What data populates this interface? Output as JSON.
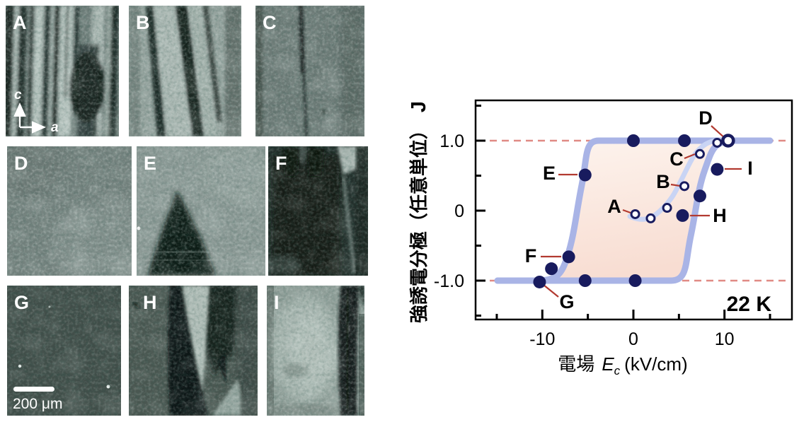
{
  "figure": {
    "panels": [
      {
        "label": "A"
      },
      {
        "label": "B"
      },
      {
        "label": "C"
      },
      {
        "label": "D"
      },
      {
        "label": "E"
      },
      {
        "label": "F"
      },
      {
        "label": "G"
      },
      {
        "label": "H"
      },
      {
        "label": "I"
      }
    ],
    "crystal_axes": {
      "vertical_axis": "c",
      "horizontal_axis": "a"
    },
    "scale_bar": {
      "label": "200 μm"
    }
  },
  "plot": {
    "panel_label": "J",
    "ylabel": "強誘電分極（任意単位）",
    "xlabel": {
      "prefix": "電場",
      "symbol": "E",
      "subscript": "c",
      "unit": "(kV/cm)"
    },
    "temperature_label": "22 K"
  },
  "chart_data": {
    "type": "scatter",
    "title": "",
    "xlabel": "電場 Ec (kV/cm)",
    "ylabel": "強誘電分極（任意単位）",
    "xlim": [
      -17.4,
      17.4
    ],
    "ylim": [
      -1.56,
      1.58
    ],
    "grid": false,
    "xticks": [
      {
        "value": -10,
        "label": "-10"
      },
      {
        "value": 0,
        "label": "0"
      },
      {
        "value": 10,
        "label": "10"
      }
    ],
    "minor_xticks": [
      -15,
      -5,
      5,
      15
    ],
    "yticks": [
      {
        "value": 1.0,
        "label": "1.0"
      },
      {
        "value": 0,
        "label": "0"
      },
      {
        "value": -1.0,
        "label": "-1.0"
      }
    ],
    "minor_yticks": [
      1.5,
      0.5,
      -0.5,
      -1.5
    ],
    "reference_lines_y": [
      1.0,
      -1.0
    ],
    "annotation": "22 K",
    "series": [
      {
        "name": "initial-polarization-states",
        "marker": "open-circle",
        "points": [
          {
            "label": "A",
            "x": 0.2,
            "y": -0.05
          },
          {
            "x": 1.9,
            "y": -0.11
          },
          {
            "x": 3.7,
            "y": 0.04
          },
          {
            "label": "B",
            "x": 5.6,
            "y": 0.35
          },
          {
            "label": "C",
            "x": 7.3,
            "y": 0.81
          },
          {
            "x": 9.2,
            "y": 0.97
          },
          {
            "label": "D",
            "x": 10.4,
            "y": 1.0
          }
        ]
      },
      {
        "name": "hysteresis-loop-states",
        "marker": "filled-circle",
        "points": [
          {
            "x": 0.0,
            "y": 1.0
          },
          {
            "x": 5.6,
            "y": 1.0
          },
          {
            "label": "E",
            "x": -5.3,
            "y": 0.51
          },
          {
            "label": "F",
            "x": -7.1,
            "y": -0.66
          },
          {
            "x": -9.0,
            "y": -0.83
          },
          {
            "label": "G",
            "x": -10.3,
            "y": -1.02
          },
          {
            "x": -5.3,
            "y": -1.0
          },
          {
            "x": 0.2,
            "y": -1.0
          },
          {
            "label": "H",
            "x": 5.4,
            "y": -0.07
          },
          {
            "x": 7.3,
            "y": 0.21
          },
          {
            "label": "I",
            "x": 9.2,
            "y": 0.59
          }
        ]
      }
    ],
    "curve_color": "#a9b4e6",
    "initial_curve_color": "#c9d4f4",
    "point_color": "#181b5e",
    "reference_line_color": "#e08a84",
    "leader_line_color": "#b23a30",
    "loop_fill_colors": [
      "#fdf4ee",
      "#f8ddd2"
    ]
  }
}
